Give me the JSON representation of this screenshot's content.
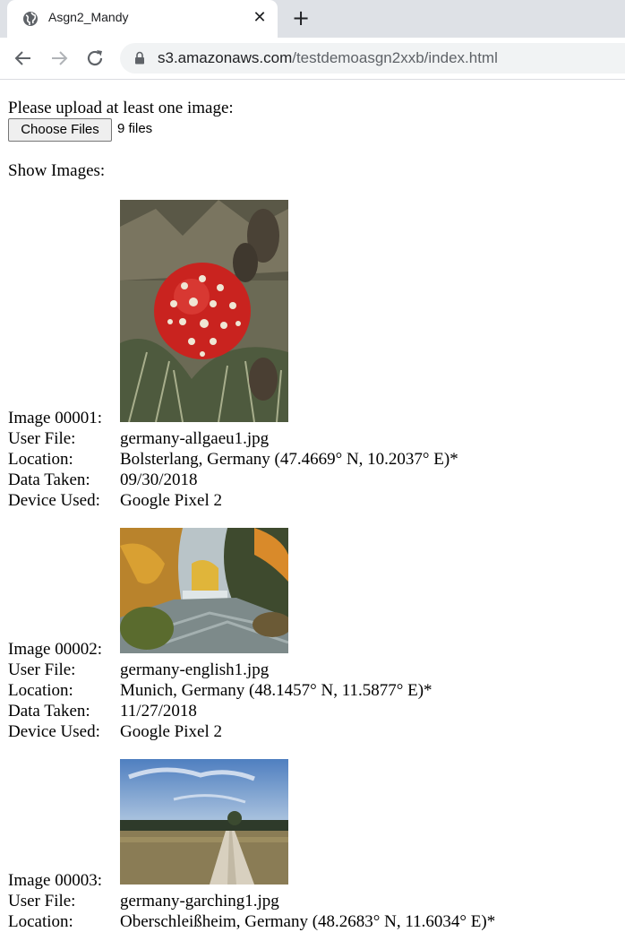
{
  "browser": {
    "tab_title": "Asgn2_Mandy",
    "close_glyph": "✕",
    "new_tab_glyph": "+",
    "url_host": "s3.amazonaws.com",
    "url_path": "/testdemoasgn2xxb/index.html",
    "icons": [
      "globe-icon",
      "close-icon",
      "plus-icon",
      "back-arrow-icon",
      "forward-arrow-icon",
      "reload-icon",
      "lock-icon"
    ]
  },
  "upload": {
    "prompt": "Please upload at least one image:",
    "button_label": "Choose Files",
    "file_count": "9 files"
  },
  "gallery": {
    "heading": "Show Images:",
    "labels": {
      "user_file": "User File:",
      "location": "Location:",
      "date": "Data Taken:",
      "device": "Device Used:"
    },
    "images": [
      {
        "id_label": "Image 00001:",
        "user_file": "germany-allgaeu1.jpg",
        "location": "Bolsterlang, Germany (47.4669° N, 10.2037° E)*",
        "date": "09/30/2018",
        "device": "Google Pixel 2"
      },
      {
        "id_label": "Image 00002:",
        "user_file": "germany-english1.jpg",
        "location": "Munich, Germany (48.1457° N, 11.5877° E)*",
        "date": "11/27/2018",
        "device": "Google Pixel 2"
      },
      {
        "id_label": "Image 00003:",
        "user_file": "germany-garching1.jpg",
        "location": "Oberschleißheim, Germany (48.2683° N, 11.6034° E)*"
      }
    ]
  }
}
